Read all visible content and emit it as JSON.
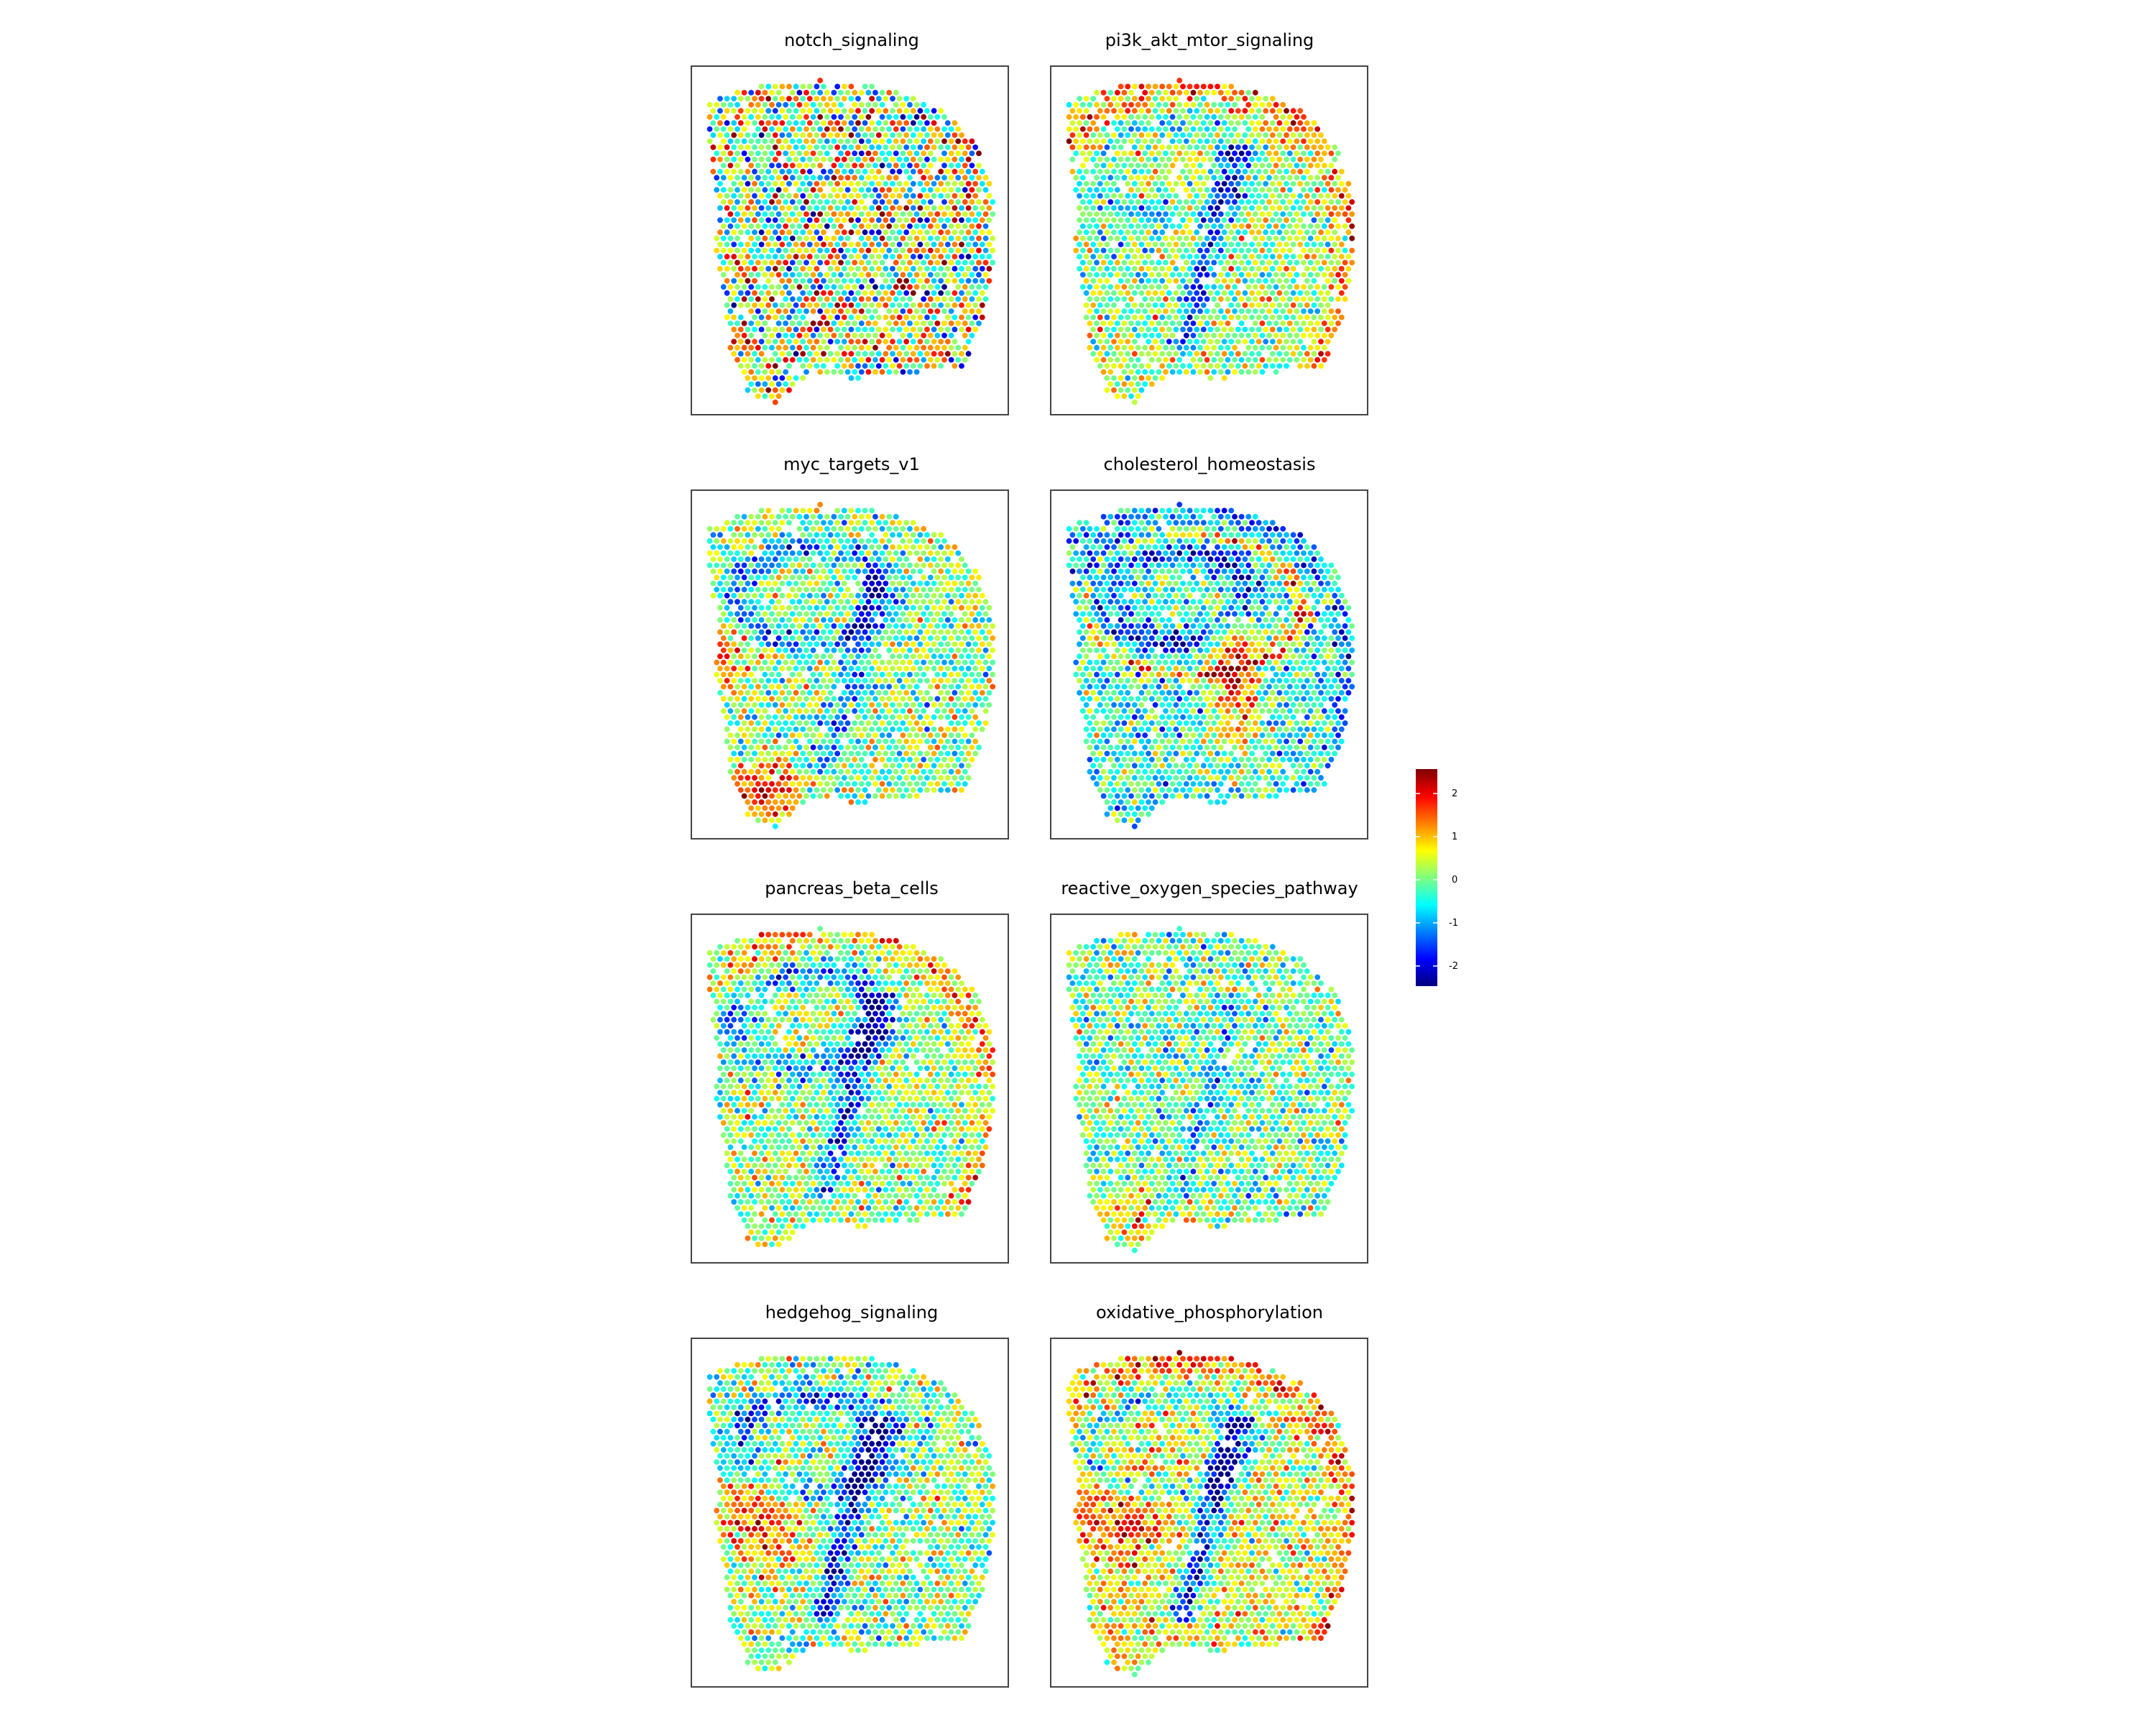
{
  "chart_data": {
    "type": "heatmap",
    "subtype": "spatial spot map",
    "layout": "4 rows x 2 columns",
    "panels": [
      {
        "title": "notch_signaling",
        "pattern": "noise",
        "mean": 0.15,
        "regions": []
      },
      {
        "title": "pi3k_akt_mtor_signaling",
        "pattern": "cortex-high, hippocampus/striatum low",
        "mean": 0.2,
        "regions": [
          "cortex:+1.1",
          "hippocampus:-0.8",
          "band:-2.0",
          "striatum:-0.3"
        ]
      },
      {
        "title": "myc_targets_v1",
        "pattern": "thalamus-low, ventral high",
        "mean": 0.0,
        "regions": [
          "band:-1.5",
          "hippocampus:-1.2",
          "ventral:+1.8",
          "left-patch:+1.4"
        ]
      },
      {
        "title": "cholesterol_homeostasis",
        "pattern": "fiber tracts high",
        "mean": -0.5,
        "regions": [
          "arc:+2.0",
          "fiber:+2.2",
          "hippocampus:-1.4",
          "cortex:-0.6"
        ]
      },
      {
        "title": "pancreas_beta_cells",
        "pattern": "cortex mixed, band low",
        "mean": 0.1,
        "regions": [
          "band:-1.8",
          "hippocampus:-1.4",
          "cortex:+0.9"
        ]
      },
      {
        "title": "reactive_oxygen_species_pathway",
        "pattern": "mostly mixed",
        "mean": -0.1,
        "regions": [
          "ventral:+1.2",
          "band:-0.9"
        ]
      },
      {
        "title": "hedgehog_signaling",
        "pattern": "striatum high, band low",
        "mean": 0.0,
        "regions": [
          "band:-2.2",
          "hippocampus:-1.6",
          "striatum:+1.5"
        ]
      },
      {
        "title": "oxidative_phosphorylation",
        "pattern": "smooth cortex high, band very low",
        "mean": 0.4,
        "regions": [
          "band:-2.5",
          "hippocampus:-1.2",
          "cortex:+0.9",
          "striatum:+1.2"
        ]
      }
    ],
    "colorbar": {
      "ticks": [
        "2",
        "1",
        "0",
        "-1",
        "-2"
      ],
      "tick_values": [
        2,
        1,
        0,
        -1,
        -2
      ],
      "range": [
        -2.5,
        2.5
      ],
      "colormap": "jet",
      "colors": [
        "#00007f",
        "#0000ff",
        "#007fff",
        "#00ffff",
        "#7fff7f",
        "#ffff00",
        "#ff7f00",
        "#ff0000",
        "#7f0000"
      ]
    }
  }
}
